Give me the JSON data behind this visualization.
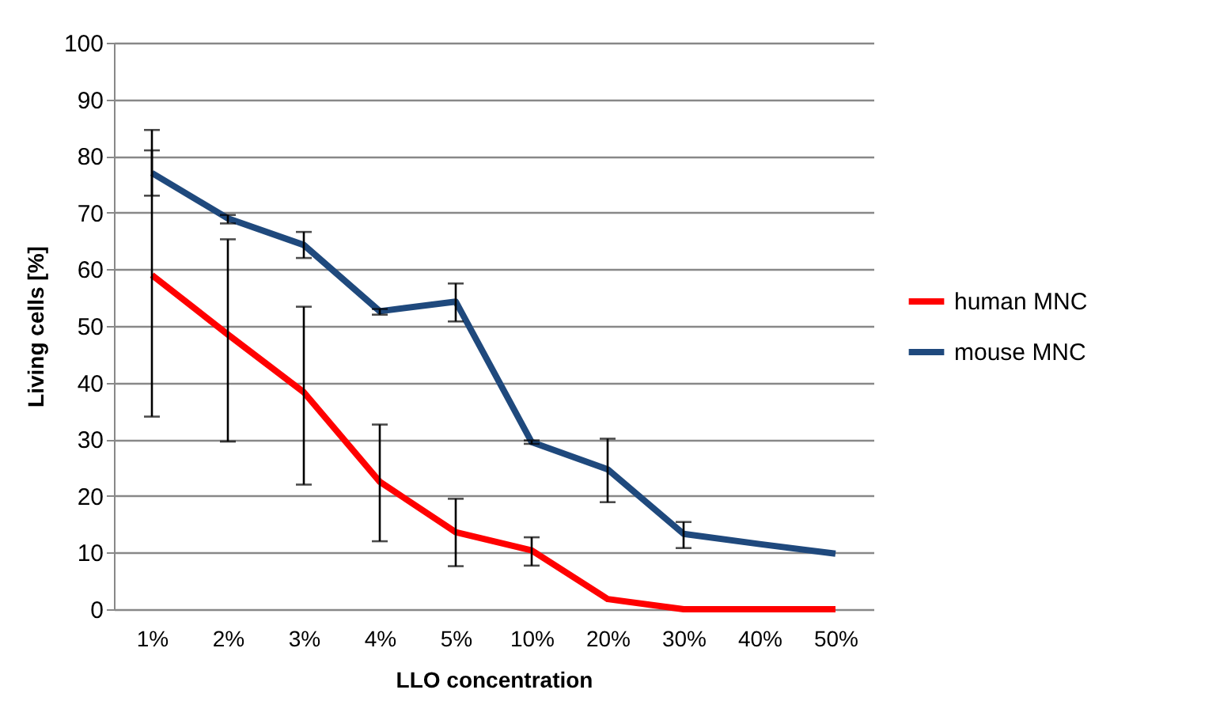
{
  "chart_data": {
    "type": "line",
    "xlabel": "LLO concentration",
    "ylabel": "Living cells [%]",
    "categories": [
      "1%",
      "2%",
      "3%",
      "4%",
      "5%",
      "10%",
      "20%",
      "30%",
      "40%",
      "50%"
    ],
    "series": [
      {
        "name": "human MNC",
        "color": "#ff0000",
        "values": [
          59,
          48.5,
          38.3,
          22.5,
          13.6,
          10.4,
          1.8,
          0,
          0,
          0
        ],
        "errors": [
          [
            34,
            81
          ],
          [
            29.6,
            65.3
          ],
          [
            22,
            53.4
          ],
          [
            12,
            32.6
          ],
          [
            7.6,
            19.5
          ],
          [
            7.7,
            12.7
          ],
          null,
          null,
          null,
          null
        ]
      },
      {
        "name": "mouse MNC",
        "color": "#1f497d",
        "values": [
          77,
          69,
          64.3,
          52.6,
          54.3,
          29.5,
          24.7,
          13.3,
          11.5,
          9.8
        ],
        "errors": [
          [
            73,
            84.6
          ],
          [
            68.1,
            69.6
          ],
          [
            62,
            66.6
          ],
          [
            52,
            53
          ],
          [
            50.8,
            57.5
          ],
          [
            29.2,
            29.8
          ],
          [
            18.9,
            30.1
          ],
          [
            10.8,
            15.4
          ],
          null,
          null
        ]
      }
    ],
    "ylim": [
      0,
      100
    ],
    "yticks": [
      0,
      10,
      20,
      30,
      40,
      50,
      60,
      70,
      80,
      90,
      100
    ],
    "grid": "y",
    "legend": "right",
    "marker": "none",
    "line_style": "solid"
  }
}
